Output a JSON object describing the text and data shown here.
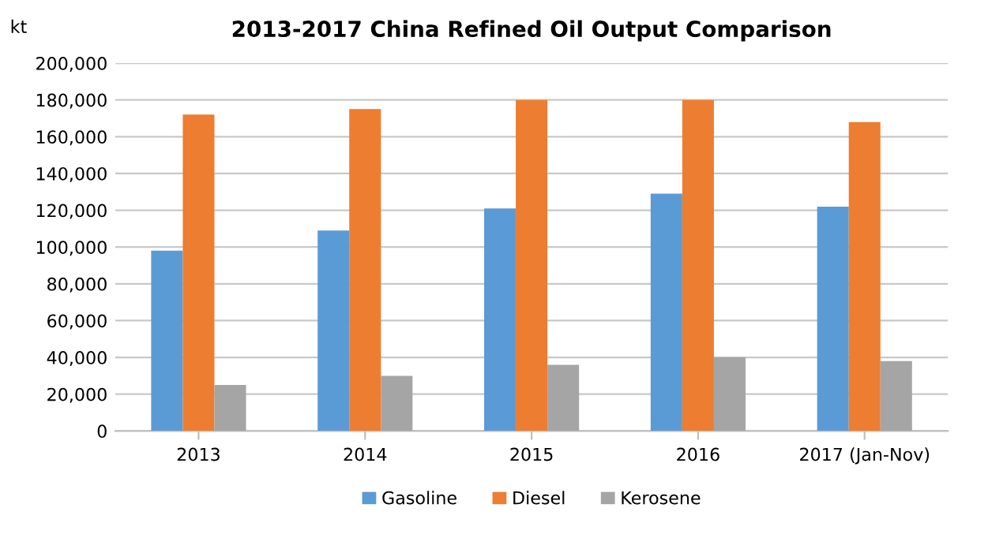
{
  "chart_data": {
    "type": "bar",
    "title": "2013-2017 China Refined Oil Output Comparison",
    "ylabel": "kt",
    "categories": [
      "2013",
      "2014",
      "2015",
      "2016",
      "2017 (Jan-Nov)"
    ],
    "series": [
      {
        "name": "Gasoline",
        "color": "#5b9bd5",
        "values": [
          98000,
          109000,
          121000,
          129000,
          122000
        ]
      },
      {
        "name": "Diesel",
        "color": "#ed7d31",
        "values": [
          172000,
          175000,
          180000,
          180000,
          168000
        ]
      },
      {
        "name": "Kerosene",
        "color": "#a5a5a5",
        "values": [
          25000,
          30000,
          36000,
          40000,
          38000
        ]
      }
    ],
    "ylim": [
      0,
      200000
    ],
    "yticks": [
      {
        "value": 0,
        "label": "0"
      },
      {
        "value": 20000,
        "label": "20,000"
      },
      {
        "value": 40000,
        "label": "40,000"
      },
      {
        "value": 60000,
        "label": "60,000"
      },
      {
        "value": 80000,
        "label": "80,000"
      },
      {
        "value": 100000,
        "label": "100,000"
      },
      {
        "value": 120000,
        "label": "120,000"
      },
      {
        "value": 140000,
        "label": "140,000"
      },
      {
        "value": 160000,
        "label": "160,000"
      },
      {
        "value": 180000,
        "label": "180,000"
      },
      {
        "value": 200000,
        "label": "200,000"
      }
    ],
    "grid": "y",
    "legend": "bottom"
  }
}
